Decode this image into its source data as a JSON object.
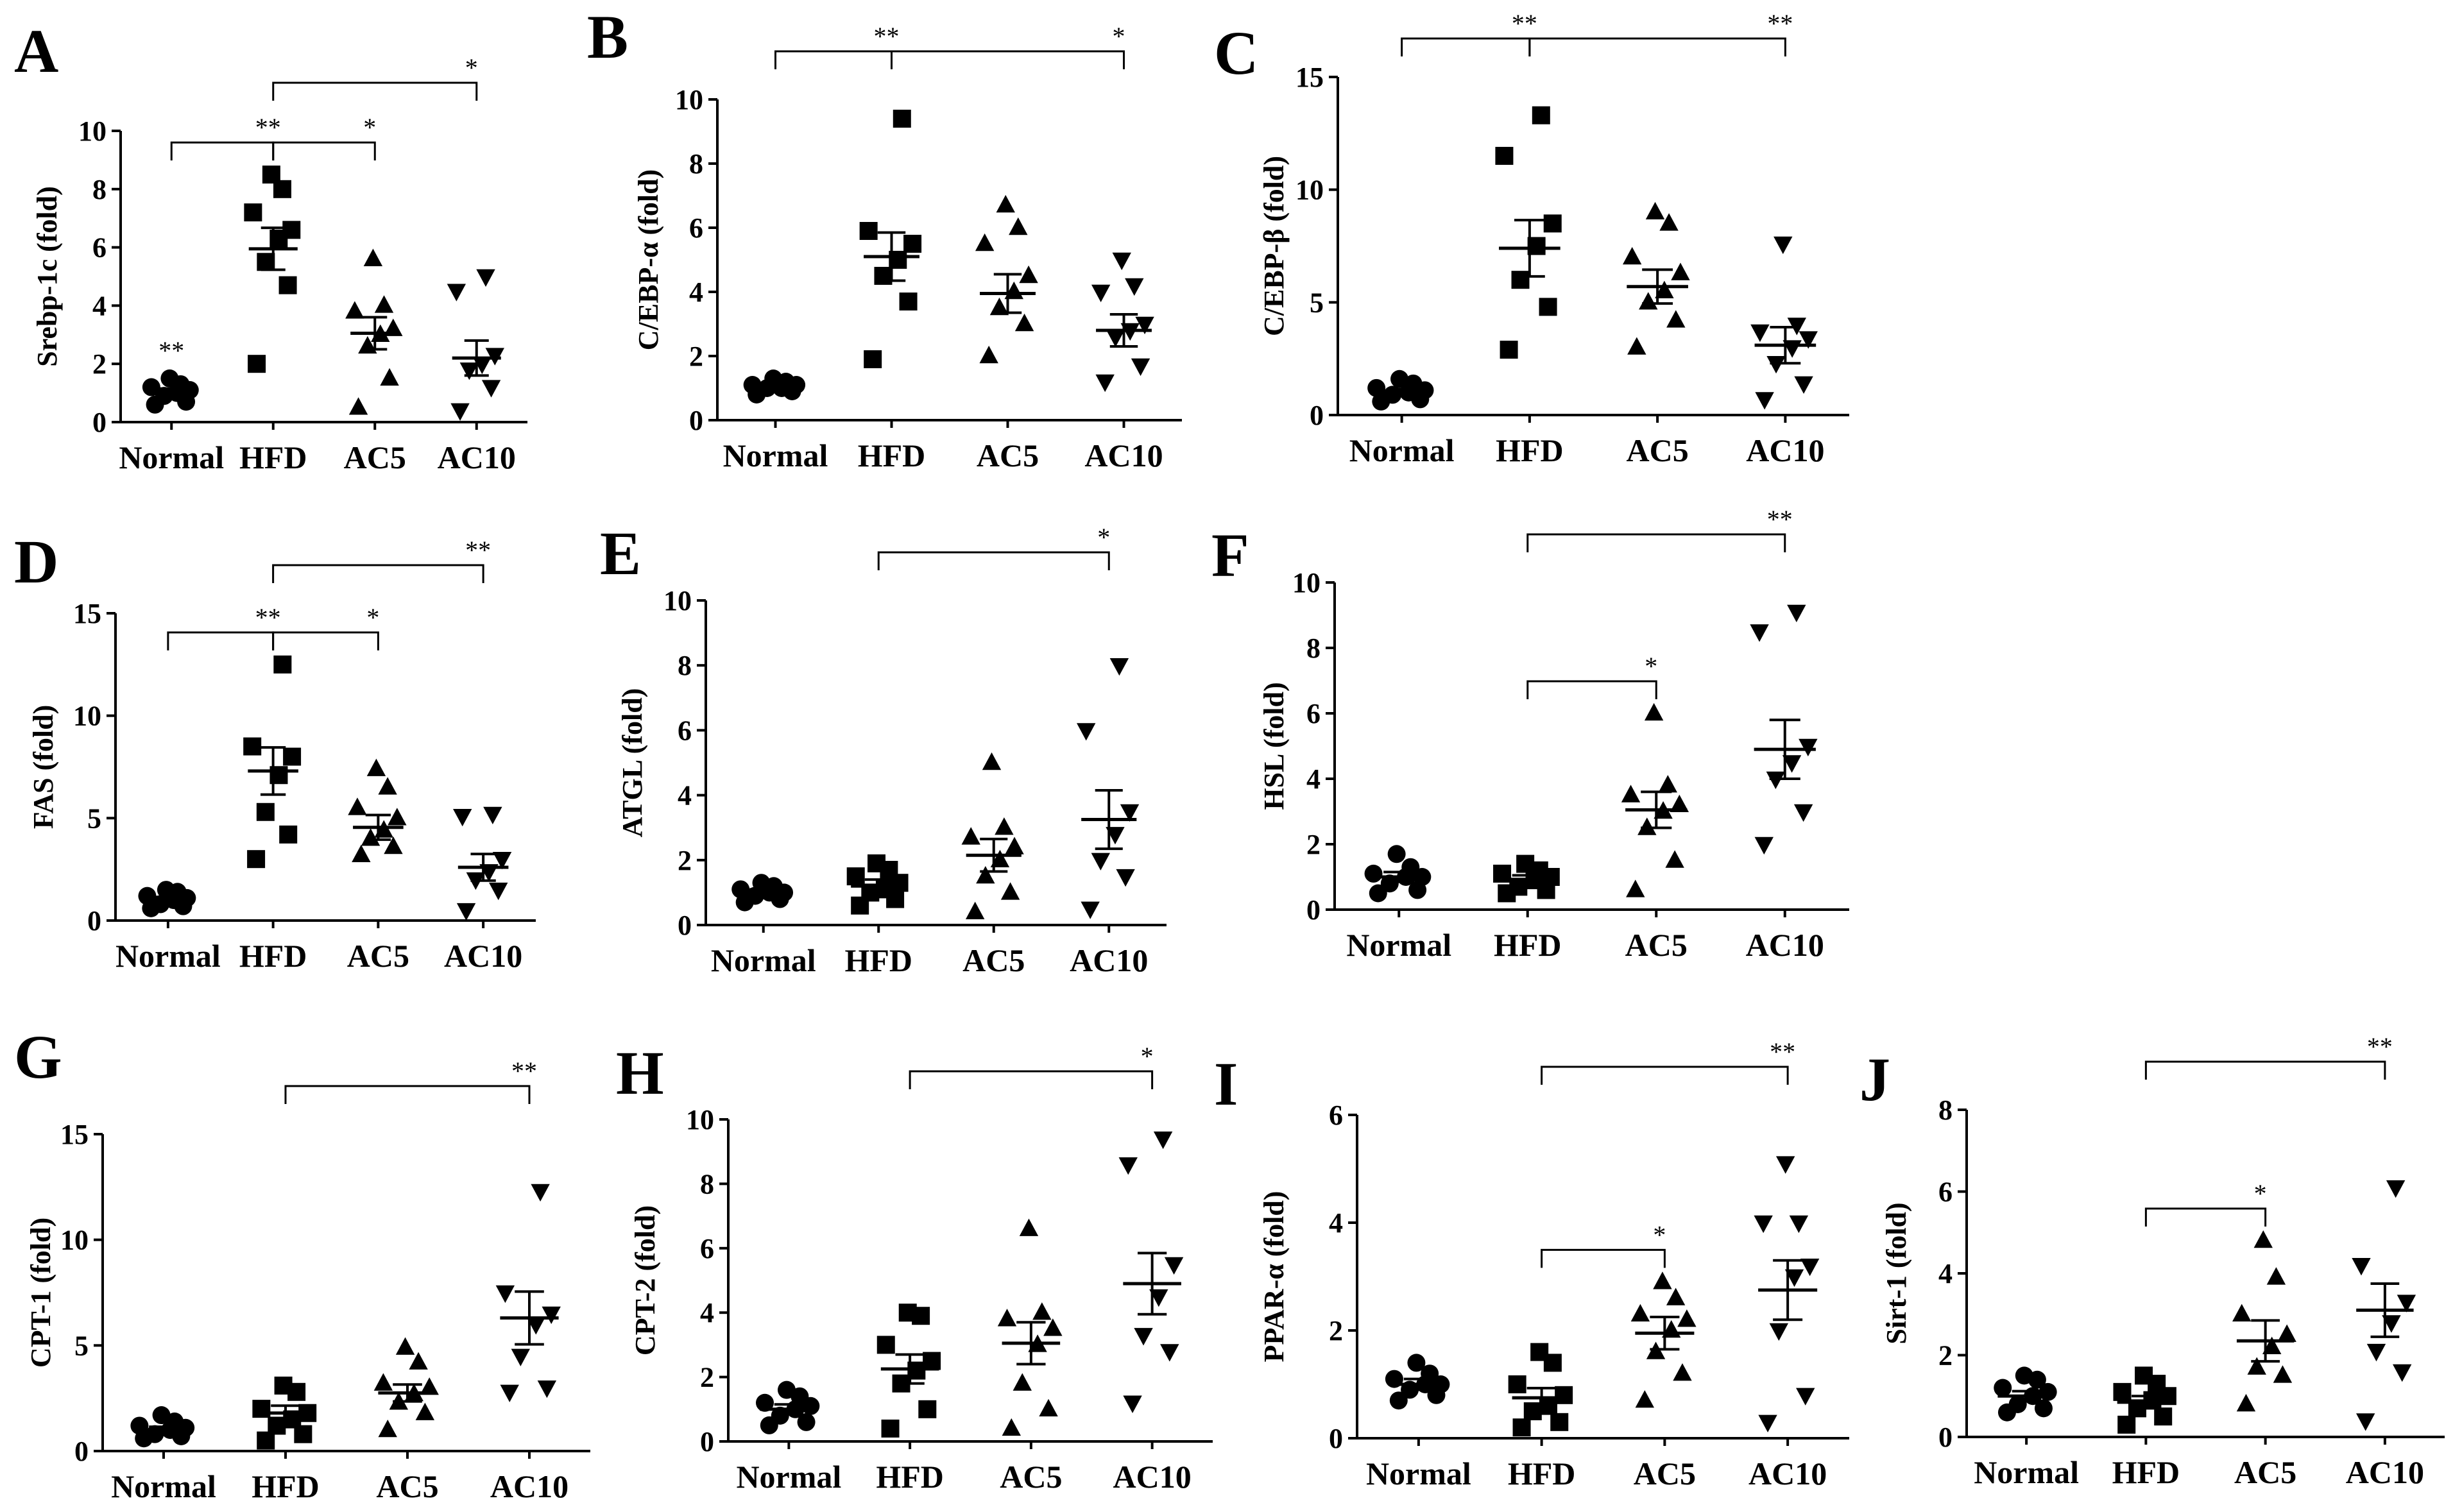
{
  "chart_data": [
    {
      "panel": "A",
      "type": "scatter",
      "ylabel": "Srebp-1c (fold)",
      "ylim": [
        0,
        10
      ],
      "yticks": [
        0,
        2,
        4,
        6,
        8,
        10
      ],
      "categories": [
        "Normal",
        "HFD",
        "AC5",
        "AC10"
      ],
      "groups": [
        {
          "name": "Normal",
          "marker": "circle",
          "points": [
            0.6,
            0.7,
            0.9,
            1.0,
            1.1,
            1.2,
            1.3,
            1.5
          ],
          "mean": 1.0,
          "sem": 0.15,
          "annotation": "**"
        },
        {
          "name": "HFD",
          "marker": "square",
          "points": [
            2.0,
            4.7,
            5.5,
            6.3,
            6.6,
            7.2,
            8.0,
            8.5
          ],
          "mean": 5.95,
          "sem": 0.72,
          "annotation": ""
        },
        {
          "name": "AC5",
          "marker": "triangle-up",
          "points": [
            0.5,
            1.5,
            2.6,
            3.0,
            3.2,
            3.8,
            4.0,
            5.6
          ],
          "mean": 3.05,
          "sem": 0.55,
          "annotation": ""
        },
        {
          "name": "AC10",
          "marker": "triangle-down",
          "points": [
            0.4,
            1.2,
            1.8,
            2.0,
            2.3,
            4.5,
            5.0
          ],
          "mean": 2.2,
          "sem": 0.6,
          "annotation": ""
        }
      ],
      "comparisons": [
        {
          "from": "Normal",
          "to": "HFD",
          "label": "**",
          "level": 0
        },
        {
          "from": "HFD",
          "to": "AC5",
          "label": "*",
          "level": 0
        },
        {
          "from": "HFD",
          "to": "AC10",
          "label": "*",
          "level": 1
        }
      ]
    },
    {
      "panel": "B",
      "type": "scatter",
      "ylabel": "C/EBP-α (fold)",
      "ylim": [
        0,
        10
      ],
      "yticks": [
        0,
        2,
        4,
        6,
        8,
        10
      ],
      "categories": [
        "Normal",
        "HFD",
        "AC5",
        "AC10"
      ],
      "groups": [
        {
          "name": "Normal",
          "marker": "circle",
          "points": [
            0.8,
            0.9,
            1.0,
            1.0,
            1.1,
            1.1,
            1.2,
            1.3
          ],
          "mean": 1.05,
          "sem": 0.1,
          "annotation": ""
        },
        {
          "name": "HFD",
          "marker": "square",
          "points": [
            1.9,
            3.7,
            4.5,
            5.0,
            5.5,
            5.9,
            9.4
          ],
          "mean": 5.1,
          "sem": 0.75,
          "annotation": ""
        },
        {
          "name": "AC5",
          "marker": "triangle-up",
          "points": [
            2.0,
            3.0,
            3.5,
            4.0,
            4.5,
            5.5,
            6.0,
            6.7
          ],
          "mean": 3.95,
          "sem": 0.6,
          "annotation": ""
        },
        {
          "name": "AC10",
          "marker": "triangle-down",
          "points": [
            1.2,
            1.7,
            2.6,
            2.8,
            3.0,
            4.0,
            4.2,
            5.0
          ],
          "mean": 2.8,
          "sem": 0.5,
          "annotation": ""
        }
      ],
      "comparisons": [
        {
          "from": "Normal",
          "to": "HFD",
          "label": "**",
          "level": 1
        },
        {
          "from": "HFD",
          "to": "AC10",
          "label": "*",
          "level": 1
        }
      ]
    },
    {
      "panel": "C",
      "type": "scatter",
      "ylabel": "C/EBP-β (fold)",
      "ylim": [
        0,
        15
      ],
      "yticks": [
        0,
        5,
        10,
        15
      ],
      "categories": [
        "Normal",
        "HFD",
        "AC5",
        "AC10"
      ],
      "groups": [
        {
          "name": "Normal",
          "marker": "circle",
          "points": [
            0.6,
            0.7,
            0.9,
            1.0,
            1.1,
            1.2,
            1.4,
            1.6
          ],
          "mean": 1.0,
          "sem": 0.15,
          "annotation": ""
        },
        {
          "name": "HFD",
          "marker": "square",
          "points": [
            2.9,
            4.8,
            6.0,
            7.5,
            8.5,
            11.5,
            13.3
          ],
          "mean": 7.4,
          "sem": 1.25,
          "annotation": ""
        },
        {
          "name": "AC5",
          "marker": "triangle-up",
          "points": [
            3.0,
            4.2,
            5.0,
            5.5,
            6.3,
            7.0,
            8.5,
            9.0
          ],
          "mean": 5.7,
          "sem": 0.75,
          "annotation": ""
        },
        {
          "name": "AC10",
          "marker": "triangle-down",
          "points": [
            0.7,
            1.4,
            2.3,
            3.0,
            3.4,
            3.7,
            4.0,
            7.6
          ],
          "mean": 3.1,
          "sem": 0.8,
          "annotation": ""
        }
      ],
      "comparisons": [
        {
          "from": "Normal",
          "to": "HFD",
          "label": "**",
          "level": 1
        },
        {
          "from": "HFD",
          "to": "AC10",
          "label": "**",
          "level": 1
        }
      ]
    },
    {
      "panel": "D",
      "type": "scatter",
      "ylabel": "FAS (fold)",
      "ylim": [
        0,
        15
      ],
      "yticks": [
        0,
        5,
        10,
        15
      ],
      "categories": [
        "Normal",
        "HFD",
        "AC5",
        "AC10"
      ],
      "groups": [
        {
          "name": "Normal",
          "marker": "circle",
          "points": [
            0.6,
            0.7,
            0.8,
            1.0,
            1.1,
            1.2,
            1.4,
            1.5
          ],
          "mean": 1.0,
          "sem": 0.15,
          "annotation": ""
        },
        {
          "name": "HFD",
          "marker": "square",
          "points": [
            3.0,
            4.2,
            5.3,
            7.1,
            8.0,
            8.5,
            12.5
          ],
          "mean": 7.3,
          "sem": 1.15,
          "annotation": ""
        },
        {
          "name": "AC5",
          "marker": "triangle-up",
          "points": [
            3.2,
            3.6,
            4.0,
            4.4,
            5.0,
            5.5,
            6.5,
            7.4
          ],
          "mean": 4.55,
          "sem": 0.6,
          "annotation": ""
        },
        {
          "name": "AC10",
          "marker": "triangle-down",
          "points": [
            0.5,
            1.5,
            2.0,
            2.4,
            3.0,
            5.1,
            5.2
          ],
          "mean": 2.6,
          "sem": 0.65,
          "annotation": ""
        }
      ],
      "comparisons": [
        {
          "from": "Normal",
          "to": "HFD",
          "label": "**",
          "level": 0
        },
        {
          "from": "HFD",
          "to": "AC5",
          "label": "*",
          "level": 0
        },
        {
          "from": "HFD",
          "to": "AC10",
          "label": "**",
          "level": 1
        }
      ]
    },
    {
      "panel": "E",
      "type": "scatter",
      "ylabel": "ATGL (fold)",
      "ylim": [
        0,
        10
      ],
      "yticks": [
        0,
        2,
        4,
        6,
        8,
        10
      ],
      "categories": [
        "Normal",
        "HFD",
        "AC5",
        "AC10"
      ],
      "groups": [
        {
          "name": "Normal",
          "marker": "circle",
          "points": [
            0.7,
            0.8,
            0.9,
            1.0,
            1.0,
            1.1,
            1.2,
            1.3
          ],
          "mean": 1.0,
          "sem": 0.1,
          "annotation": ""
        },
        {
          "name": "HFD",
          "marker": "square",
          "points": [
            0.6,
            0.8,
            1.0,
            1.1,
            1.3,
            1.5,
            1.7,
            1.9
          ],
          "mean": 1.2,
          "sem": 0.2,
          "annotation": ""
        },
        {
          "name": "AC5",
          "marker": "triangle-up",
          "points": [
            0.4,
            1.0,
            1.5,
            2.0,
            2.4,
            2.7,
            3.0,
            5.0
          ],
          "mean": 2.15,
          "sem": 0.5,
          "annotation": ""
        },
        {
          "name": "AC10",
          "marker": "triangle-down",
          "points": [
            0.5,
            1.5,
            2.0,
            2.8,
            3.5,
            6.0,
            8.0
          ],
          "mean": 3.25,
          "sem": 0.9,
          "annotation": ""
        }
      ],
      "comparisons": [
        {
          "from": "HFD",
          "to": "AC10",
          "label": "*",
          "level": 1
        }
      ]
    },
    {
      "panel": "F",
      "type": "scatter",
      "ylabel": "HSL (fold)",
      "ylim": [
        0,
        10
      ],
      "yticks": [
        0,
        2,
        4,
        6,
        8,
        10
      ],
      "categories": [
        "Normal",
        "HFD",
        "AC5",
        "AC10"
      ],
      "groups": [
        {
          "name": "Normal",
          "marker": "circle",
          "points": [
            0.5,
            0.6,
            0.8,
            1.0,
            1.0,
            1.1,
            1.3,
            1.7
          ],
          "mean": 1.0,
          "sem": 0.15,
          "annotation": ""
        },
        {
          "name": "HFD",
          "marker": "square",
          "points": [
            0.5,
            0.6,
            0.7,
            0.9,
            1.0,
            1.1,
            1.2,
            1.4
          ],
          "mean": 0.9,
          "sem": 0.15,
          "annotation": ""
        },
        {
          "name": "AC5",
          "marker": "triangle-up",
          "points": [
            0.6,
            1.5,
            2.5,
            3.0,
            3.2,
            3.5,
            3.8,
            6.0
          ],
          "mean": 3.05,
          "sem": 0.55,
          "annotation": ""
        },
        {
          "name": "AC10",
          "marker": "triangle-down",
          "points": [
            2.0,
            3.0,
            4.0,
            4.5,
            5.0,
            8.5,
            9.1
          ],
          "mean": 4.9,
          "sem": 0.9,
          "annotation": ""
        }
      ],
      "comparisons": [
        {
          "from": "HFD",
          "to": "AC5",
          "label": "*",
          "level": 0
        },
        {
          "from": "HFD",
          "to": "AC10",
          "label": "**",
          "level": 1
        }
      ]
    },
    {
      "panel": "G",
      "type": "scatter",
      "ylabel": "CPT-1 (fold)",
      "ylim": [
        0,
        15
      ],
      "yticks": [
        0,
        5,
        10,
        15
      ],
      "categories": [
        "Normal",
        "HFD",
        "AC5",
        "AC10"
      ],
      "groups": [
        {
          "name": "Normal",
          "marker": "circle",
          "points": [
            0.6,
            0.7,
            0.8,
            1.0,
            1.1,
            1.2,
            1.4,
            1.7
          ],
          "mean": 1.0,
          "sem": 0.15,
          "annotation": ""
        },
        {
          "name": "HFD",
          "marker": "square",
          "points": [
            0.5,
            0.8,
            1.2,
            1.5,
            1.8,
            2.0,
            2.8,
            3.1
          ],
          "mean": 1.8,
          "sem": 0.35,
          "annotation": ""
        },
        {
          "name": "AC5",
          "marker": "triangle-up",
          "points": [
            1.0,
            1.8,
            2.3,
            2.7,
            3.0,
            3.2,
            4.2,
            4.9
          ],
          "mean": 2.75,
          "sem": 0.4,
          "annotation": ""
        },
        {
          "name": "AC10",
          "marker": "triangle-down",
          "points": [
            2.8,
            3.0,
            4.5,
            6.0,
            6.5,
            7.5,
            12.3
          ],
          "mean": 6.3,
          "sem": 1.25,
          "annotation": ""
        }
      ],
      "comparisons": [
        {
          "from": "HFD",
          "to": "AC10",
          "label": "**",
          "level": 1
        }
      ]
    },
    {
      "panel": "H",
      "type": "scatter",
      "ylabel": "CPT-2 (fold)",
      "ylim": [
        0,
        10
      ],
      "yticks": [
        0,
        2,
        4,
        6,
        8,
        10
      ],
      "categories": [
        "Normal",
        "HFD",
        "AC5",
        "AC10"
      ],
      "groups": [
        {
          "name": "Normal",
          "marker": "circle",
          "points": [
            0.5,
            0.6,
            0.8,
            1.0,
            1.1,
            1.2,
            1.4,
            1.6
          ],
          "mean": 1.0,
          "sem": 0.15,
          "annotation": ""
        },
        {
          "name": "HFD",
          "marker": "square",
          "points": [
            0.4,
            1.0,
            1.8,
            2.2,
            2.5,
            3.0,
            3.9,
            4.0
          ],
          "mean": 2.25,
          "sem": 0.45,
          "annotation": ""
        },
        {
          "name": "AC5",
          "marker": "triangle-up",
          "points": [
            0.4,
            1.0,
            1.8,
            3.0,
            3.5,
            3.8,
            4.0,
            6.6
          ],
          "mean": 3.05,
          "sem": 0.65,
          "annotation": ""
        },
        {
          "name": "AC10",
          "marker": "triangle-down",
          "points": [
            1.2,
            2.8,
            3.3,
            4.5,
            5.5,
            8.6,
            9.4
          ],
          "mean": 4.9,
          "sem": 0.95,
          "annotation": ""
        }
      ],
      "comparisons": [
        {
          "from": "HFD",
          "to": "AC10",
          "label": "*",
          "level": 1
        }
      ]
    },
    {
      "panel": "I",
      "type": "scatter",
      "ylabel": "PPAR-α (fold)",
      "ylim": [
        0,
        6
      ],
      "yticks": [
        0,
        2,
        4,
        6
      ],
      "categories": [
        "Normal",
        "HFD",
        "AC5",
        "AC10"
      ],
      "groups": [
        {
          "name": "Normal",
          "marker": "circle",
          "points": [
            0.7,
            0.8,
            0.9,
            1.0,
            1.0,
            1.1,
            1.2,
            1.4
          ],
          "mean": 1.0,
          "sem": 0.1,
          "annotation": ""
        },
        {
          "name": "HFD",
          "marker": "square",
          "points": [
            0.2,
            0.3,
            0.5,
            0.6,
            0.8,
            1.0,
            1.4,
            1.6
          ],
          "mean": 0.75,
          "sem": 0.18,
          "annotation": ""
        },
        {
          "name": "AC5",
          "marker": "triangle-up",
          "points": [
            0.7,
            1.2,
            1.6,
            2.0,
            2.2,
            2.3,
            2.6,
            2.9
          ],
          "mean": 1.95,
          "sem": 0.3,
          "annotation": ""
        },
        {
          "name": "AC10",
          "marker": "triangle-down",
          "points": [
            0.3,
            0.8,
            2.0,
            3.0,
            3.2,
            4.0,
            4.0,
            5.1
          ],
          "mean": 2.75,
          "sem": 0.55,
          "annotation": ""
        }
      ],
      "comparisons": [
        {
          "from": "HFD",
          "to": "AC5",
          "label": "*",
          "level": 0
        },
        {
          "from": "HFD",
          "to": "AC10",
          "label": "**",
          "level": 1
        }
      ]
    },
    {
      "panel": "J",
      "type": "scatter",
      "ylabel": "Sirt-1 (fold)",
      "ylim": [
        0,
        8
      ],
      "yticks": [
        0,
        2,
        4,
        6,
        8
      ],
      "categories": [
        "Normal",
        "HFD",
        "AC5",
        "AC10"
      ],
      "groups": [
        {
          "name": "Normal",
          "marker": "circle",
          "points": [
            0.6,
            0.7,
            0.8,
            1.0,
            1.1,
            1.2,
            1.4,
            1.5
          ],
          "mean": 1.0,
          "sem": 0.12,
          "annotation": ""
        },
        {
          "name": "HFD",
          "marker": "square",
          "points": [
            0.3,
            0.5,
            0.7,
            0.9,
            1.0,
            1.1,
            1.3,
            1.5
          ],
          "mean": 0.85,
          "sem": 0.15,
          "annotation": ""
        },
        {
          "name": "AC5",
          "marker": "triangle-up",
          "points": [
            0.8,
            1.5,
            1.7,
            2.2,
            2.5,
            3.0,
            3.9,
            4.8
          ],
          "mean": 2.35,
          "sem": 0.5,
          "annotation": ""
        },
        {
          "name": "AC10",
          "marker": "triangle-down",
          "points": [
            0.4,
            1.6,
            2.1,
            2.8,
            3.3,
            4.2,
            6.1
          ],
          "mean": 3.1,
          "sem": 0.65,
          "annotation": ""
        }
      ],
      "comparisons": [
        {
          "from": "HFD",
          "to": "AC5",
          "label": "*",
          "level": 0
        },
        {
          "from": "HFD",
          "to": "AC10",
          "label": "**",
          "level": 1
        }
      ]
    }
  ]
}
